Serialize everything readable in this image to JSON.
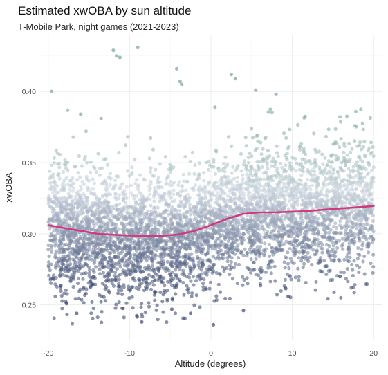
{
  "chart_data": {
    "type": "scatter",
    "title": "Estimated xwOBA by sun altitude",
    "subtitle": "T-Mobile Park, night games (2021-2023)",
    "xlabel": "Altitude (degrees)",
    "ylabel": "xwOBA",
    "xlim": [
      -21,
      21
    ],
    "ylim": [
      0.225,
      0.44
    ],
    "x_ticks": [
      -20,
      -10,
      0,
      10,
      20
    ],
    "x_tick_labels": [
      "-20",
      "-10",
      "0",
      "10",
      "20"
    ],
    "y_ticks": [
      0.25,
      0.3,
      0.35,
      0.4
    ],
    "y_tick_labels": [
      "0.25",
      "0.30",
      "0.35",
      "0.40"
    ],
    "grid": true,
    "point_color_low": "#2b3a66",
    "point_color_mid": "#c9d3dd",
    "point_color_high": "#6e9e8e",
    "trend_color": "#d13a7f",
    "trend_line": {
      "x": [
        -20,
        -18,
        -16,
        -14,
        -12,
        -10,
        -8,
        -6,
        -4,
        -2,
        0,
        2,
        4,
        6,
        8,
        10,
        12,
        14,
        16,
        18,
        20
      ],
      "y": [
        0.306,
        0.304,
        0.302,
        0.3,
        0.2993,
        0.2987,
        0.2985,
        0.2985,
        0.2995,
        0.302,
        0.306,
        0.3105,
        0.314,
        0.315,
        0.315,
        0.3155,
        0.316,
        0.317,
        0.3178,
        0.3186,
        0.3195
      ]
    },
    "highlight_points": [
      {
        "x": -19.6,
        "y": 0.4
      },
      {
        "x": -12.0,
        "y": 0.429
      },
      {
        "x": -11.6,
        "y": 0.425
      },
      {
        "x": -11.2,
        "y": 0.424
      },
      {
        "x": -9.0,
        "y": 0.431
      },
      {
        "x": -4.2,
        "y": 0.416
      },
      {
        "x": -3.8,
        "y": 0.407
      },
      {
        "x": -3.6,
        "y": 0.405
      },
      {
        "x": 2.5,
        "y": 0.412
      },
      {
        "x": 3.0,
        "y": 0.409
      },
      {
        "x": 5.5,
        "y": 0.401
      },
      {
        "x": 8.0,
        "y": 0.398
      },
      {
        "x": -16.0,
        "y": 0.384
      },
      {
        "x": -13.5,
        "y": 0.381
      },
      {
        "x": 0.5,
        "y": 0.389
      },
      {
        "x": -4.8,
        "y": 0.247
      },
      {
        "x": 0.3,
        "y": 0.236
      },
      {
        "x": -8.5,
        "y": 0.238
      },
      {
        "x": -16.5,
        "y": 0.244
      },
      {
        "x": -2.5,
        "y": 0.244
      },
      {
        "x": 4.0,
        "y": 0.246
      },
      {
        "x": 9.5,
        "y": 0.256
      }
    ]
  }
}
